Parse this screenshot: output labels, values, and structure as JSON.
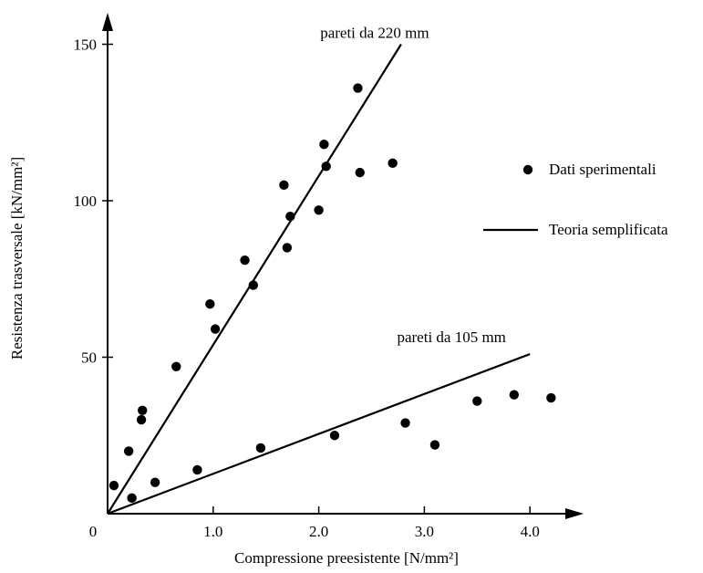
{
  "chart_data": {
    "type": "scatter",
    "title": "",
    "xlabel": "Compressione preesistente [N/mm²]",
    "ylabel": "Resistenza trasversale [kN/mm²]",
    "xlim": [
      0,
      4.5
    ],
    "ylim": [
      0,
      160
    ],
    "x_ticks": [
      {
        "value": 0,
        "label": "0"
      },
      {
        "value": 1,
        "label": "1.0"
      },
      {
        "value": 2,
        "label": "2.0"
      },
      {
        "value": 3,
        "label": "3.0"
      },
      {
        "value": 4,
        "label": "4.0"
      }
    ],
    "y_ticks": [
      {
        "value": 50,
        "label": "50"
      },
      {
        "value": 100,
        "label": "100"
      },
      {
        "value": 150,
        "label": "150"
      }
    ],
    "grid": false,
    "legend_position": "right",
    "series": [
      {
        "name": "Dati sperimentali",
        "kind": "scatter",
        "color": "#000000",
        "points": [
          [
            0.06,
            9
          ],
          [
            0.2,
            20
          ],
          [
            0.23,
            5
          ],
          [
            0.33,
            33
          ],
          [
            0.32,
            30
          ],
          [
            0.65,
            47
          ],
          [
            0.97,
            67
          ],
          [
            1.02,
            59
          ],
          [
            1.3,
            81
          ],
          [
            1.38,
            73
          ],
          [
            1.67,
            105
          ],
          [
            1.7,
            85
          ],
          [
            1.73,
            95
          ],
          [
            2.0,
            97
          ],
          [
            2.05,
            118
          ],
          [
            2.07,
            111
          ],
          [
            2.37,
            136
          ],
          [
            2.39,
            109
          ],
          [
            2.7,
            112
          ],
          [
            0.45,
            10
          ],
          [
            0.85,
            14
          ],
          [
            1.45,
            21
          ],
          [
            2.15,
            25
          ],
          [
            2.82,
            29
          ],
          [
            3.1,
            22
          ],
          [
            3.5,
            36
          ],
          [
            3.85,
            38
          ],
          [
            4.2,
            37
          ]
        ]
      },
      {
        "name": "Teoria semplificata",
        "kind": "line",
        "color": "#000000",
        "lines": [
          {
            "label": "pareti da 220 mm",
            "x": [
              0,
              2.78
            ],
            "y": [
              0,
              150
            ]
          },
          {
            "label": "pareti da 105 mm",
            "x": [
              0,
              4.0
            ],
            "y": [
              0,
              51
            ]
          }
        ]
      }
    ]
  }
}
